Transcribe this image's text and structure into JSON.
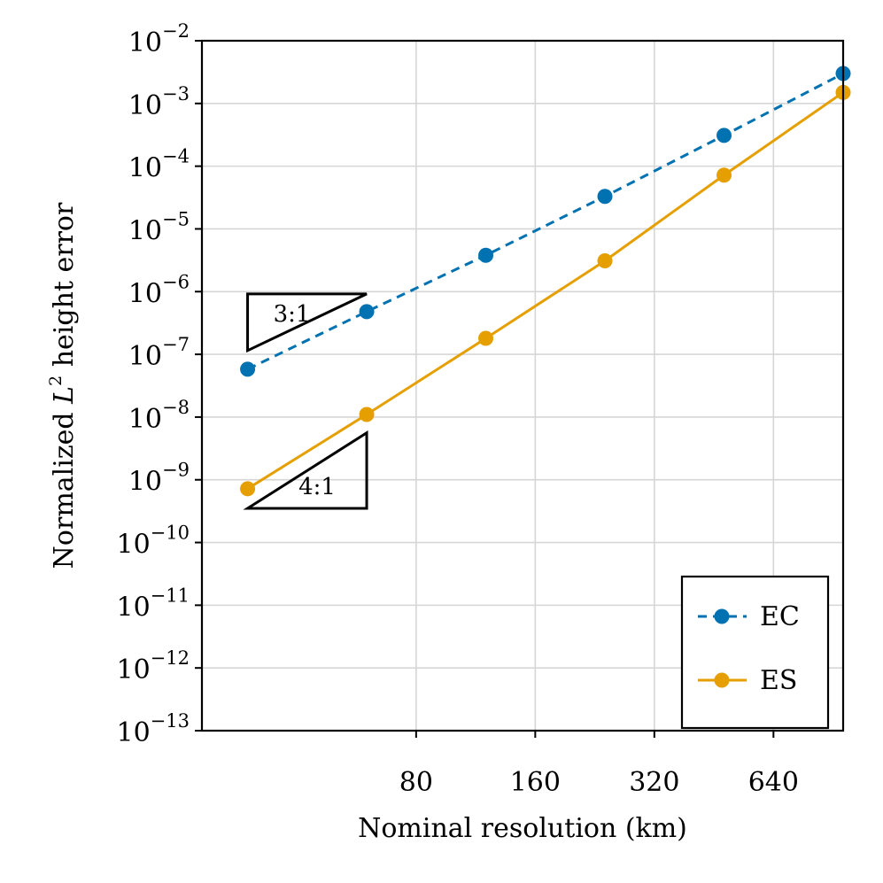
{
  "chart_data": {
    "type": "line",
    "xscale": "log2",
    "yscale": "log10",
    "xlabel": "Nominal resolution (km)",
    "ylabel": {
      "prefix": "Normalized ",
      "var": "L",
      "sup": "2",
      "suffix": " height error"
    },
    "xlim": [
      23,
      960
    ],
    "ylim_exp": [
      -13,
      -2
    ],
    "xticks": [
      80,
      160,
      320,
      640
    ],
    "xtick_labels": [
      "80",
      "160",
      "320",
      "640"
    ],
    "yticks_exp": [
      -2,
      -3,
      -4,
      -5,
      -6,
      -7,
      -8,
      -9,
      -10,
      -11,
      -12,
      -13
    ],
    "ytick_base": "10",
    "ytick_sups": [
      "−2",
      "−3",
      "−4",
      "−5",
      "−6",
      "−7",
      "−8",
      "−9",
      "−10",
      "−11",
      "−12",
      "−13"
    ],
    "grid": true,
    "legend_position": "lower-right",
    "series": [
      {
        "name": "EC",
        "style": "dashed",
        "color": "#0072b2",
        "x": [
          30,
          60,
          120,
          240,
          480,
          960
        ],
        "y": [
          5.8e-08,
          4.8e-07,
          3.8e-06,
          3.3e-05,
          0.00031,
          0.003
        ]
      },
      {
        "name": "ES",
        "style": "solid",
        "color": "#e69f00",
        "x": [
          30,
          60,
          120,
          240,
          480,
          960
        ],
        "y": [
          7.2e-10,
          1.1e-08,
          1.8e-07,
          3.1e-06,
          7.2e-05,
          0.0015
        ]
      }
    ],
    "slope_triangles": [
      {
        "label": "3:1",
        "x": [
          30,
          60
        ],
        "y_low": 1.15e-07,
        "y_high": 9.2e-07,
        "orientation": "upper-left"
      },
      {
        "label": "4:1",
        "x": [
          30,
          60
        ],
        "y_low": 3.5e-10,
        "y_high": 5.6e-09,
        "orientation": "lower-right"
      }
    ]
  }
}
